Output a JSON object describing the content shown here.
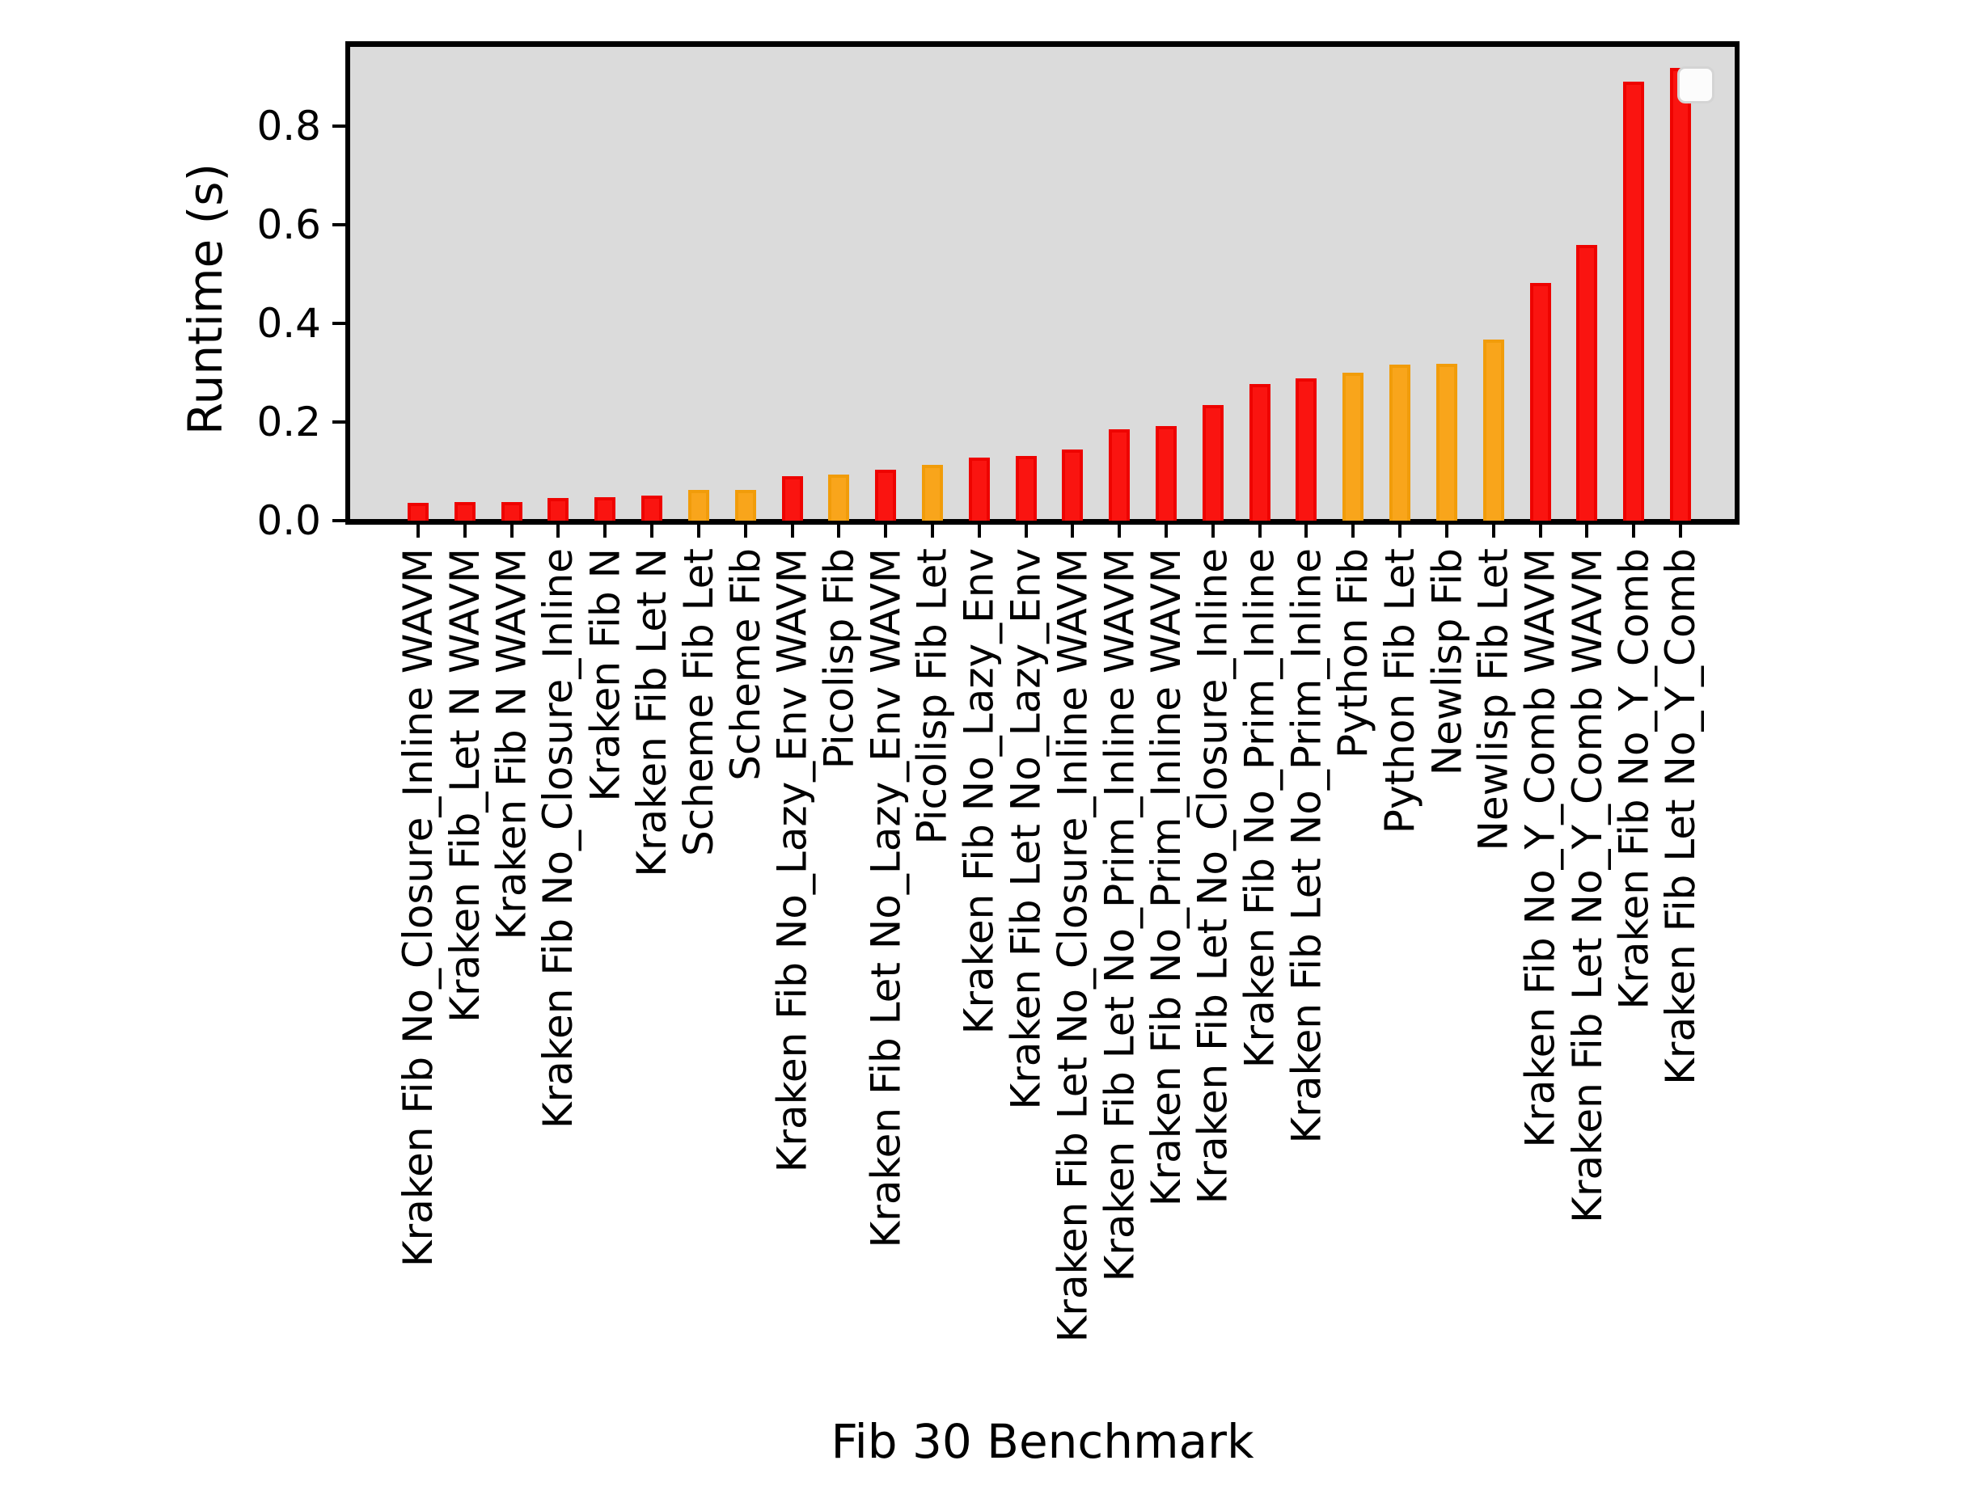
{
  "figure": {
    "kind": "matplotlib-style bar chart screenshot",
    "background": "#ffffff"
  },
  "palette": {
    "kraken_fill": "#fa1410",
    "kraken_edge": "#ee0300",
    "other_fill": "#f9a51b",
    "other_edge": "#f19c0a",
    "plot_background": "#dbdbdb",
    "spine_color": "#000000",
    "text_color": "#000000",
    "legend_background": "#fcfcfc",
    "legend_border": "#d4d4d4"
  },
  "legend": {
    "visible": true,
    "entries": []
  },
  "chart_data": {
    "type": "bar",
    "title": "",
    "xlabel": "Fib 30 Benchmark",
    "ylabel": "Runtime (s)",
    "ylim": [
      0,
      0.963
    ],
    "yticks": [
      "0.0",
      "0.2",
      "0.4",
      "0.6",
      "0.8"
    ],
    "ytick_values": [
      0.0,
      0.2,
      0.4,
      0.6,
      0.8
    ],
    "grid": false,
    "legend_position": "upper-right-empty",
    "xtick_rotation_deg": 90,
    "categories": [
      "Kraken Fib No_Closure_Inline WAVM",
      "Kraken Fib_Let N WAVM",
      "Kraken Fib N WAVM",
      "Kraken Fib No_Closure_Inline",
      "Kraken Fib N",
      "Kraken Fib Let N",
      "Scheme Fib Let",
      "Scheme Fib",
      "Kraken Fib No_Lazy_Env WAVM",
      "Picolisp Fib",
      "Kraken Fib Let No_Lazy_Env WAVM",
      "Picolisp Fib Let",
      "Kraken Fib No_Lazy_Env",
      "Kraken Fib Let No_Lazy_Env",
      "Kraken Fib Let No_Closure_Inline WAVM",
      "Kraken Fib Let No_Prim_Inline WAVM",
      "Kraken Fib No_Prim_Inline WAVM",
      "Kraken Fib Let No_Closure_Inline",
      "Kraken Fib No_Prim_Inline",
      "Kraken Fib Let No_Prim_Inline",
      "Python Fib",
      "Python Fib Let",
      "Newlisp Fib",
      "Newlisp Fib Let",
      "Kraken Fib No_Y_Comb WAVM",
      "Kraken Fib Let No_Y_Comb WAVM",
      "Kraken Fib No_Y_Comb",
      "Kraken Fib Let No_Y_Comb"
    ],
    "values": [
      0.036,
      0.037,
      0.037,
      0.046,
      0.048,
      0.051,
      0.062,
      0.062,
      0.091,
      0.094,
      0.103,
      0.114,
      0.128,
      0.131,
      0.144,
      0.186,
      0.192,
      0.234,
      0.278,
      0.288,
      0.3,
      0.317,
      0.319,
      0.367,
      0.483,
      0.56,
      0.89,
      0.918
    ],
    "groups": [
      "kraken",
      "kraken",
      "kraken",
      "kraken",
      "kraken",
      "kraken",
      "other",
      "other",
      "kraken",
      "other",
      "kraken",
      "other",
      "kraken",
      "kraken",
      "kraken",
      "kraken",
      "kraken",
      "kraken",
      "kraken",
      "kraken",
      "other",
      "other",
      "other",
      "other",
      "kraken",
      "kraken",
      "kraken",
      "kraken"
    ]
  }
}
